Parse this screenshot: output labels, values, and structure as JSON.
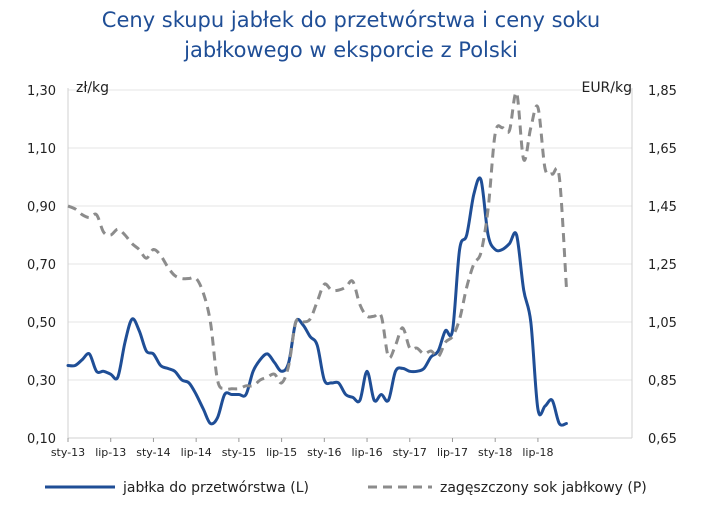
{
  "chart_data": {
    "type": "line",
    "title_lines": [
      "Ceny skupu jabłek do przetwórstwa i ceny soku",
      "jabłkowego w eksporcie z Polski"
    ],
    "left_unit": "zł/kg",
    "right_unit": "EUR/kg",
    "left_axis": {
      "min": 0.1,
      "max": 1.3,
      "ticks": [
        "0,10",
        "0,30",
        "0,50",
        "0,70",
        "0,90",
        "1,10",
        "1,30"
      ]
    },
    "right_axis": {
      "min": 0.65,
      "max": 1.85,
      "ticks": [
        "0,65",
        "0,85",
        "1,05",
        "1,25",
        "1,45",
        "1,65",
        "1,85"
      ]
    },
    "x_range": [
      0,
      66
    ],
    "x_ticks": [
      {
        "x": 0,
        "label": "sty-13"
      },
      {
        "x": 6,
        "label": "lip-13"
      },
      {
        "x": 12,
        "label": "sty-14"
      },
      {
        "x": 18,
        "label": "lip-14"
      },
      {
        "x": 24,
        "label": "sty-15"
      },
      {
        "x": 30,
        "label": "lip-15"
      },
      {
        "x": 36,
        "label": "sty-16"
      },
      {
        "x": 42,
        "label": "lip-16"
      },
      {
        "x": 48,
        "label": "sty-17"
      },
      {
        "x": 54,
        "label": "lip-17"
      },
      {
        "x": 60,
        "label": "sty-18"
      },
      {
        "x": 66,
        "label": "lip-18"
      }
    ],
    "series": [
      {
        "name": "jabłka do przetwórstwa (L)",
        "axis": "left",
        "color": "#1f4e96",
        "style": "solid",
        "points": [
          [
            0,
            0.35
          ],
          [
            1,
            0.35
          ],
          [
            2,
            0.37
          ],
          [
            3,
            0.39
          ],
          [
            4,
            0.33
          ],
          [
            5,
            0.33
          ],
          [
            6,
            0.32
          ],
          [
            7,
            0.31
          ],
          [
            8,
            0.43
          ],
          [
            9,
            0.51
          ],
          [
            10,
            0.47
          ],
          [
            11,
            0.4
          ],
          [
            12,
            0.39
          ],
          [
            13,
            0.35
          ],
          [
            14,
            0.34
          ],
          [
            15,
            0.33
          ],
          [
            16,
            0.3
          ],
          [
            17,
            0.29
          ],
          [
            18,
            0.25
          ],
          [
            19,
            0.2
          ],
          [
            20,
            0.15
          ],
          [
            21,
            0.17
          ],
          [
            22,
            0.25
          ],
          [
            23,
            0.25
          ],
          [
            24,
            0.25
          ],
          [
            25,
            0.25
          ],
          [
            26,
            0.33
          ],
          [
            27,
            0.37
          ],
          [
            28,
            0.39
          ],
          [
            29,
            0.36
          ],
          [
            30,
            0.33
          ],
          [
            31,
            0.36
          ],
          [
            32,
            0.5
          ],
          [
            33,
            0.49
          ],
          [
            34,
            0.45
          ],
          [
            35,
            0.42
          ],
          [
            36,
            0.3
          ],
          [
            37,
            0.29
          ],
          [
            38,
            0.29
          ],
          [
            39,
            0.25
          ],
          [
            40,
            0.24
          ],
          [
            41,
            0.23
          ],
          [
            42,
            0.33
          ],
          [
            43,
            0.23
          ],
          [
            44,
            0.25
          ],
          [
            45,
            0.23
          ],
          [
            46,
            0.33
          ],
          [
            47,
            0.34
          ],
          [
            48,
            0.33
          ],
          [
            49,
            0.33
          ],
          [
            50,
            0.34
          ],
          [
            51,
            0.38
          ],
          [
            52,
            0.4
          ],
          [
            53,
            0.47
          ],
          [
            54,
            0.47
          ],
          [
            55,
            0.75
          ],
          [
            56,
            0.8
          ],
          [
            57,
            0.94
          ],
          [
            58,
            0.99
          ],
          [
            59,
            0.8
          ],
          [
            60,
            0.75
          ],
          [
            61,
            0.75
          ],
          [
            62,
            0.77
          ],
          [
            63,
            0.8
          ],
          [
            64,
            0.61
          ],
          [
            65,
            0.5
          ],
          [
            66,
            0.2
          ],
          [
            67,
            0.21
          ],
          [
            68,
            0.23
          ],
          [
            69,
            0.15
          ],
          [
            70,
            0.15
          ]
        ]
      },
      {
        "name": "zagęszczony sok jabłkowy (P)",
        "axis": "right",
        "color": "#8c8c8c",
        "style": "dashed",
        "points": [
          [
            0,
            1.45
          ],
          [
            1,
            1.44
          ],
          [
            2,
            1.42
          ],
          [
            3,
            1.41
          ],
          [
            4,
            1.42
          ],
          [
            5,
            1.36
          ],
          [
            6,
            1.35
          ],
          [
            7,
            1.37
          ],
          [
            8,
            1.35
          ],
          [
            9,
            1.32
          ],
          [
            10,
            1.3
          ],
          [
            11,
            1.27
          ],
          [
            12,
            1.3
          ],
          [
            13,
            1.28
          ],
          [
            14,
            1.24
          ],
          [
            15,
            1.21
          ],
          [
            16,
            1.2
          ],
          [
            17,
            1.2
          ],
          [
            18,
            1.2
          ],
          [
            19,
            1.15
          ],
          [
            20,
            1.05
          ],
          [
            21,
            0.85
          ],
          [
            22,
            0.82
          ],
          [
            23,
            0.82
          ],
          [
            24,
            0.82
          ],
          [
            25,
            0.83
          ],
          [
            26,
            0.83
          ],
          [
            27,
            0.85
          ],
          [
            28,
            0.86
          ],
          [
            29,
            0.87
          ],
          [
            30,
            0.84
          ],
          [
            31,
            0.9
          ],
          [
            32,
            1.05
          ],
          [
            33,
            1.05
          ],
          [
            34,
            1.06
          ],
          [
            35,
            1.12
          ],
          [
            36,
            1.18
          ],
          [
            37,
            1.16
          ],
          [
            38,
            1.16
          ],
          [
            39,
            1.17
          ],
          [
            40,
            1.19
          ],
          [
            41,
            1.11
          ],
          [
            42,
            1.07
          ],
          [
            43,
            1.07
          ],
          [
            44,
            1.07
          ],
          [
            45,
            0.93
          ],
          [
            46,
            0.97
          ],
          [
            47,
            1.03
          ],
          [
            48,
            0.96
          ],
          [
            49,
            0.96
          ],
          [
            50,
            0.94
          ],
          [
            51,
            0.95
          ],
          [
            52,
            0.93
          ],
          [
            53,
            0.98
          ],
          [
            54,
            1.0
          ],
          [
            55,
            1.06
          ],
          [
            56,
            1.17
          ],
          [
            57,
            1.25
          ],
          [
            58,
            1.29
          ],
          [
            59,
            1.44
          ],
          [
            60,
            1.7
          ],
          [
            61,
            1.72
          ],
          [
            62,
            1.71
          ],
          [
            63,
            1.84
          ],
          [
            64,
            1.61
          ],
          [
            65,
            1.72
          ],
          [
            66,
            1.79
          ],
          [
            67,
            1.58
          ],
          [
            68,
            1.56
          ],
          [
            69,
            1.55
          ],
          [
            70,
            1.17
          ]
        ]
      }
    ]
  }
}
